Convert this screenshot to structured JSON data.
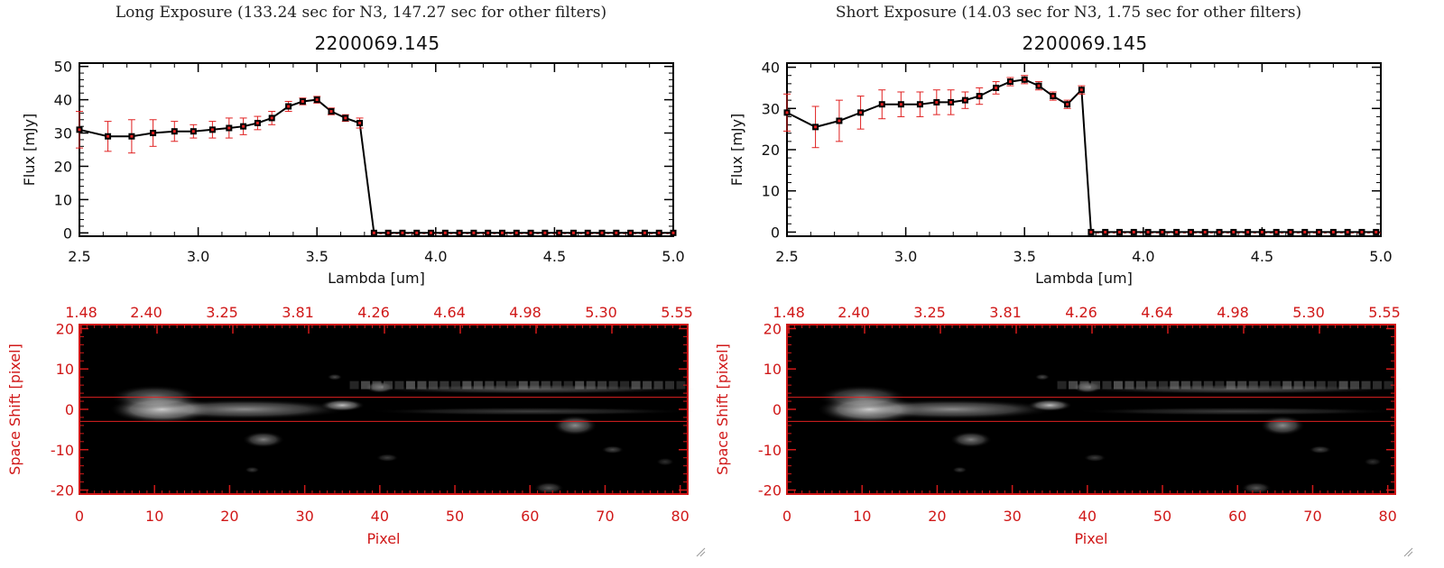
{
  "panels": [
    {
      "header": "Long Exposure (133.24 sec for N3, 147.27 sec for other filters)",
      "title": "2200069.145"
    },
    {
      "header": "Short Exposure (14.03 sec for N3, 1.75 sec for other filters)",
      "title": "2200069.145"
    }
  ],
  "colors": {
    "axis": "#000000",
    "error": "#e02020",
    "image_axis": "#d01818",
    "aperture": "#e02020"
  },
  "chart_data": [
    {
      "type": "line",
      "title": "2200069.145",
      "xlabel": "Lambda [um]",
      "ylabel": "Flux [mJy]",
      "xlim": [
        2.5,
        5.0
      ],
      "ylim": [
        -1,
        51
      ],
      "yticks": [
        0,
        10,
        20,
        30,
        40,
        50
      ],
      "xticks": [
        "2.5",
        "3.0",
        "3.5",
        "4.0",
        "4.5",
        "5.0"
      ],
      "x": [
        2.5,
        2.62,
        2.72,
        2.81,
        2.9,
        2.98,
        3.06,
        3.13,
        3.19,
        3.25,
        3.31,
        3.38,
        3.44,
        3.5,
        3.56,
        3.62,
        3.68,
        3.74
      ],
      "y": [
        31.0,
        29.0,
        29.0,
        30.0,
        30.5,
        30.5,
        31.0,
        31.5,
        32.0,
        33.0,
        34.5,
        38.0,
        39.5,
        40.0,
        36.5,
        34.5,
        33.0,
        0.0
      ],
      "yerr": [
        5.5,
        4.5,
        5.0,
        4.0,
        3.0,
        2.0,
        2.5,
        3.0,
        2.5,
        2.0,
        2.0,
        1.5,
        1.0,
        1.0,
        1.0,
        1.0,
        1.5,
        0.0
      ],
      "zero_points_from": 3.74
    },
    {
      "type": "line",
      "title": "2200069.145",
      "xlabel": "Lambda [um]",
      "ylabel": "Flux [mJy]",
      "xlim": [
        2.5,
        5.0
      ],
      "ylim": [
        -1,
        41
      ],
      "yticks": [
        0,
        10,
        20,
        30,
        40
      ],
      "xticks": [
        "2.5",
        "3.0",
        "3.5",
        "4.0",
        "4.5",
        "5.0"
      ],
      "x": [
        2.5,
        2.62,
        2.72,
        2.81,
        2.9,
        2.98,
        3.06,
        3.13,
        3.19,
        3.25,
        3.31,
        3.38,
        3.44,
        3.5,
        3.56,
        3.62,
        3.68,
        3.74,
        3.78
      ],
      "y": [
        29.0,
        25.5,
        27.0,
        29.0,
        31.0,
        31.0,
        31.0,
        31.5,
        31.5,
        32.0,
        33.0,
        35.0,
        36.5,
        37.0,
        35.5,
        33.0,
        31.0,
        34.5,
        0.0
      ],
      "yerr": [
        4.5,
        5.0,
        5.0,
        4.0,
        3.5,
        3.0,
        3.0,
        3.0,
        3.0,
        2.0,
        2.0,
        1.5,
        1.0,
        1.0,
        1.0,
        1.0,
        1.0,
        1.0,
        0.0
      ],
      "zero_points_from": 3.78
    },
    {
      "type": "heatmap",
      "xlabel": "Pixel",
      "ylabel": "Space Shift [pixel]",
      "xlim": [
        0,
        81
      ],
      "ylim": [
        -21,
        21
      ],
      "xticks": [
        0,
        10,
        20,
        30,
        40,
        50,
        60,
        70,
        80
      ],
      "yticks": [
        -20,
        -10,
        0,
        10,
        20
      ],
      "top_axis_labels": [
        "1.48",
        "2.40",
        "3.25",
        "3.81",
        "4.26",
        "4.64",
        "4.98",
        "5.30",
        "5.55"
      ],
      "aperture_lines": [
        3,
        -3
      ]
    },
    {
      "type": "heatmap",
      "xlabel": "Pixel",
      "ylabel": "Space Shift [pixel]",
      "xlim": [
        0,
        81
      ],
      "ylim": [
        -21,
        21
      ],
      "xticks": [
        0,
        10,
        20,
        30,
        40,
        50,
        60,
        70,
        80
      ],
      "yticks": [
        -20,
        -10,
        0,
        10,
        20
      ],
      "top_axis_labels": [
        "1.48",
        "2.40",
        "3.25",
        "3.81",
        "4.26",
        "4.64",
        "4.98",
        "5.30",
        "5.55"
      ],
      "aperture_lines": [
        3,
        -3
      ]
    }
  ]
}
